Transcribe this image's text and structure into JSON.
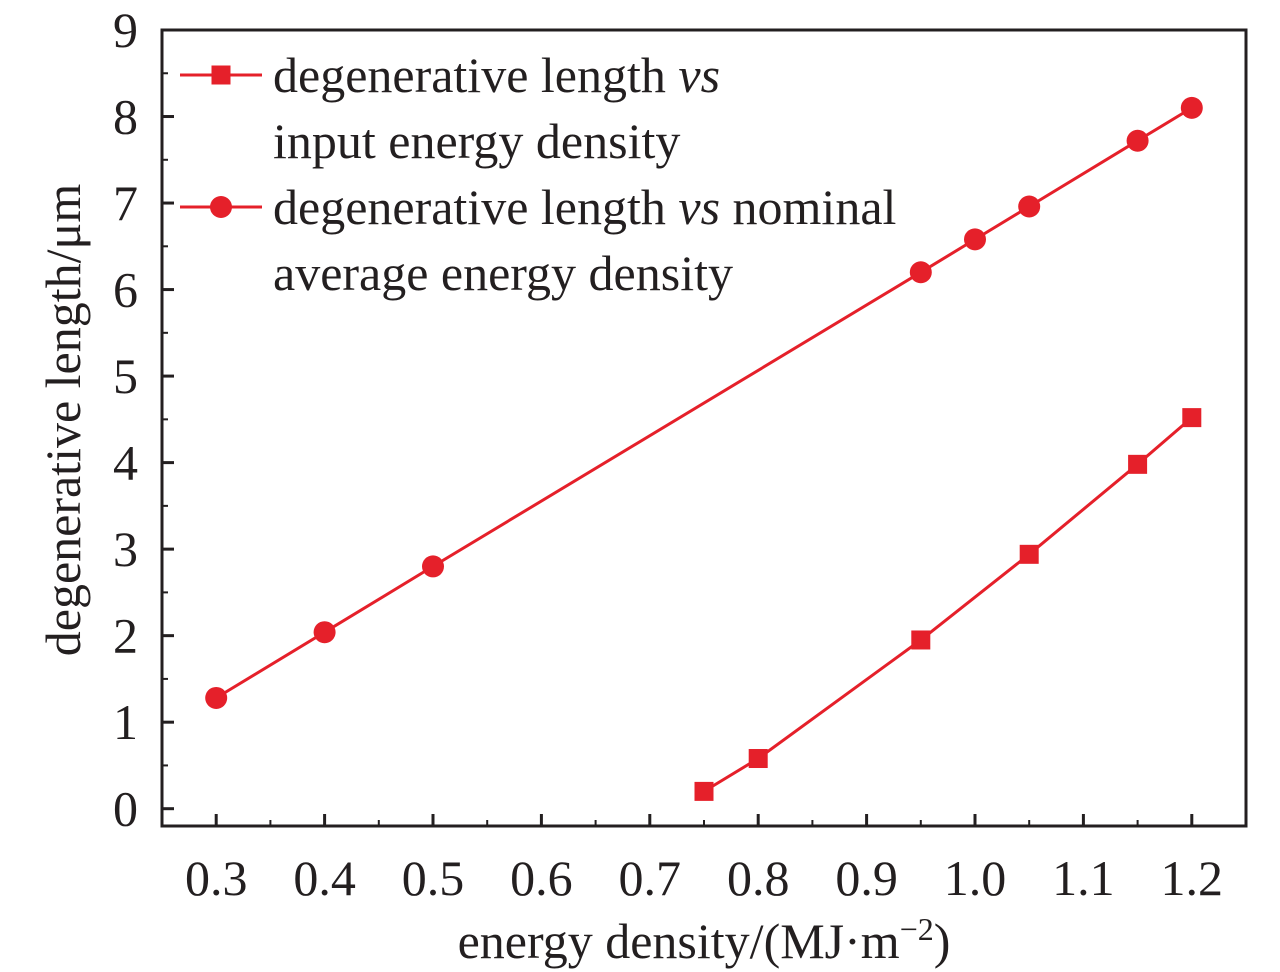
{
  "chart_data": {
    "type": "line",
    "title": "",
    "xlabel": "energy density/(MJ·m",
    "xlabel_exponent": "−2",
    "xlabel_close": ")",
    "ylabel": "degenerative length/μm",
    "xlim": [
      0.25,
      1.25
    ],
    "ylim": [
      -0.2,
      9.0
    ],
    "x_ticks": [
      0.3,
      0.4,
      0.5,
      0.6,
      0.7,
      0.8,
      0.9,
      1.0,
      1.1,
      1.2
    ],
    "x_tick_labels": [
      "0.3",
      "0.4",
      "0.5",
      "0.6",
      "0.7",
      "0.8",
      "0.9",
      "1.0",
      "1.1",
      "1.2"
    ],
    "y_ticks": [
      0,
      1,
      2,
      3,
      4,
      5,
      6,
      7,
      8,
      9
    ],
    "y_tick_labels": [
      "0",
      "1",
      "2",
      "3",
      "4",
      "5",
      "6",
      "7",
      "8",
      "9"
    ],
    "grid": false,
    "legend_position": "top-left",
    "series_color": "#e5202a",
    "series": [
      {
        "name_lines": [
          [
            {
              "t": "degenerative length ",
              "i": false
            },
            {
              "t": "vs",
              "i": true
            }
          ],
          [
            {
              "t": "input energy density",
              "i": false
            }
          ]
        ],
        "marker": "square",
        "x": [
          0.75,
          0.8,
          0.95,
          1.05,
          1.15,
          1.2
        ],
        "y": [
          0.2,
          0.58,
          1.95,
          2.94,
          3.98,
          4.52
        ]
      },
      {
        "name_lines": [
          [
            {
              "t": "degenerative length ",
              "i": false
            },
            {
              "t": "vs",
              "i": true
            },
            {
              "t": " nominal",
              "i": false
            }
          ],
          [
            {
              "t": "average energy density",
              "i": false
            }
          ]
        ],
        "marker": "circle",
        "x": [
          0.3,
          0.4,
          0.5,
          0.95,
          1.0,
          1.05,
          1.15,
          1.2
        ],
        "y": [
          1.28,
          2.04,
          2.8,
          6.2,
          6.58,
          6.96,
          7.72,
          8.1
        ]
      }
    ]
  }
}
